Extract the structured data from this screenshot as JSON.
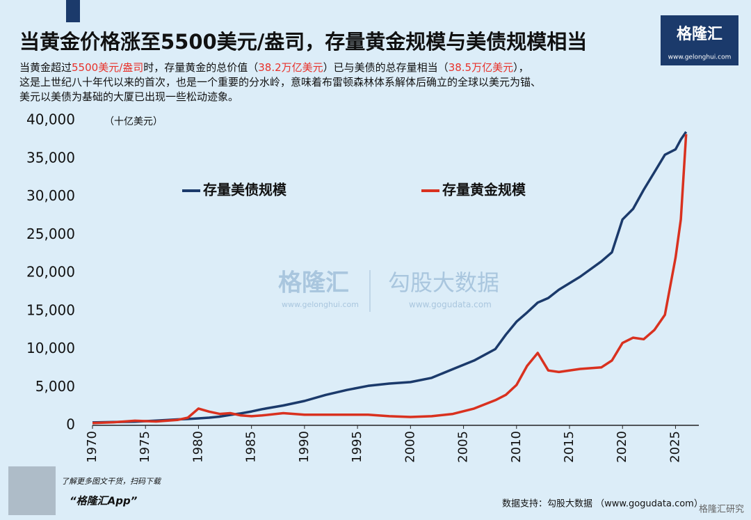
{
  "chart_data": {
    "type": "line",
    "title": "当黄金价格涨至5500美元/盎司，存量黄金规模与美债规模相当",
    "subtitle": [
      [
        {
          "text": "当黄金超过",
          "highlight": false
        },
        {
          "text": "5500美元/盎司",
          "highlight": true
        },
        {
          "text": "时，存量黄金的总价值（",
          "highlight": false
        },
        {
          "text": "38.2万亿美元",
          "highlight": true
        },
        {
          "text": "）已与美债的总存量相当（",
          "highlight": false
        },
        {
          "text": "38.5万亿美元",
          "highlight": true
        },
        {
          "text": "），",
          "highlight": false
        }
      ],
      [
        {
          "text": "这是上世纪八十年代以来的首次，也是一个重要的分水岭，意味着布雷顿森林体系解体后确立的全球以美元为锚、",
          "highlight": false
        }
      ],
      [
        {
          "text": "美元以美债为基础的大厦已出现一些松动迹象。",
          "highlight": false
        }
      ]
    ],
    "highlight_color": "#e8312a",
    "y_unit": "（十亿美元）",
    "x": [
      1970,
      1972,
      1974,
      1976,
      1978,
      1979,
      1980,
      1981,
      1982,
      1983,
      1984,
      1985,
      1986,
      1988,
      1990,
      1992,
      1994,
      1996,
      1998,
      2000,
      2002,
      2004,
      2006,
      2008,
      2009,
      2010,
      2011,
      2012,
      2013,
      2014,
      2016,
      2018,
      2019,
      2020,
      2021,
      2022,
      2023,
      2024,
      2025,
      2025.5,
      2026
    ],
    "series": [
      {
        "name": "存量美债规模",
        "color": "#1b3a6b",
        "values": [
          370,
          430,
          480,
          620,
          780,
          830,
          910,
          1000,
          1140,
          1370,
          1570,
          1820,
          2120,
          2600,
          3200,
          3990,
          4640,
          5180,
          5480,
          5670,
          6230,
          7380,
          8500,
          10000,
          11900,
          13600,
          14800,
          16100,
          16700,
          17800,
          19500,
          21500,
          22700,
          27000,
          28400,
          30900,
          33200,
          35500,
          36200,
          37500,
          38500
        ]
      },
      {
        "name": "存量黄金规模",
        "color": "#d9311f",
        "values": [
          300,
          400,
          600,
          500,
          700,
          1000,
          2200,
          1800,
          1500,
          1600,
          1300,
          1200,
          1300,
          1600,
          1400,
          1400,
          1400,
          1400,
          1200,
          1100,
          1200,
          1500,
          2200,
          3300,
          4000,
          5300,
          7800,
          9500,
          7200,
          7000,
          7400,
          7600,
          8500,
          10800,
          11500,
          11300,
          12500,
          14500,
          22000,
          27000,
          38200
        ]
      }
    ],
    "xlim": [
      1970,
      2027.2
    ],
    "xticks": [
      1970,
      1975,
      1980,
      1985,
      1990,
      1995,
      2000,
      2005,
      2010,
      2015,
      2020,
      2025
    ],
    "ylim": [
      0,
      40000
    ],
    "yticks": [
      0,
      {
        "value": 5000,
        "label": "5,000"
      },
      {
        "value": 10000,
        "label": "10,000"
      },
      {
        "value": 15000,
        "label": "15,000"
      },
      {
        "value": 20000,
        "label": "20,000"
      },
      {
        "value": 25000,
        "label": "25,000"
      },
      {
        "value": 30000,
        "label": "30,000"
      },
      {
        "value": 35000,
        "label": "35,000"
      },
      {
        "value": 40000,
        "label": "40,000"
      }
    ],
    "grid": false,
    "logo": {
      "name": "格隆汇",
      "url": "www.gelonghui.com"
    },
    "watermarks": [
      {
        "name": "格隆汇",
        "url": "www.gelonghui.com"
      },
      {
        "name": "勾股大数据",
        "url": "www.gogudata.com"
      }
    ],
    "footer": {
      "promo": "了解更多图文干货，扫码下载",
      "app": "“格隆汇App”",
      "source": "数据支持：勾股大数据 （www.gogudata.com）",
      "research": "格隆汇研究"
    }
  }
}
